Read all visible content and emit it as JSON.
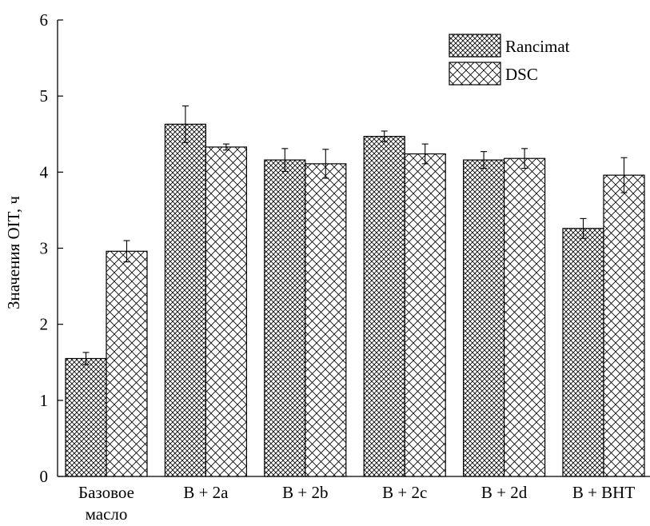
{
  "chart_data": {
    "type": "bar",
    "title": "",
    "xlabel": "",
    "ylabel": "Значения OIT, ч",
    "ylim": [
      0,
      6
    ],
    "yticks": [
      "0",
      "1",
      "2",
      "3",
      "4",
      "5",
      "6"
    ],
    "categories": [
      [
        "Базовое",
        "масло"
      ],
      [
        "B + 2a"
      ],
      [
        "B + 2b"
      ],
      [
        "B + 2c"
      ],
      [
        "B + 2d"
      ],
      [
        "B + BHT"
      ]
    ],
    "series": [
      {
        "name": "Rancimat",
        "pattern": "fine-crosshatch",
        "values": [
          1.55,
          4.63,
          4.16,
          4.47,
          4.16,
          3.26
        ],
        "errors": [
          0.08,
          0.24,
          0.15,
          0.07,
          0.11,
          0.13
        ]
      },
      {
        "name": "DSC",
        "pattern": "coarse-crosshatch",
        "values": [
          2.96,
          4.33,
          4.11,
          4.24,
          4.18,
          3.96
        ],
        "errors": [
          0.14,
          0.04,
          0.19,
          0.13,
          0.13,
          0.23
        ]
      }
    ],
    "legend_position": "top-right",
    "grid": false,
    "colors": {
      "stroke": "#000000",
      "fill": "#ffffff"
    }
  }
}
